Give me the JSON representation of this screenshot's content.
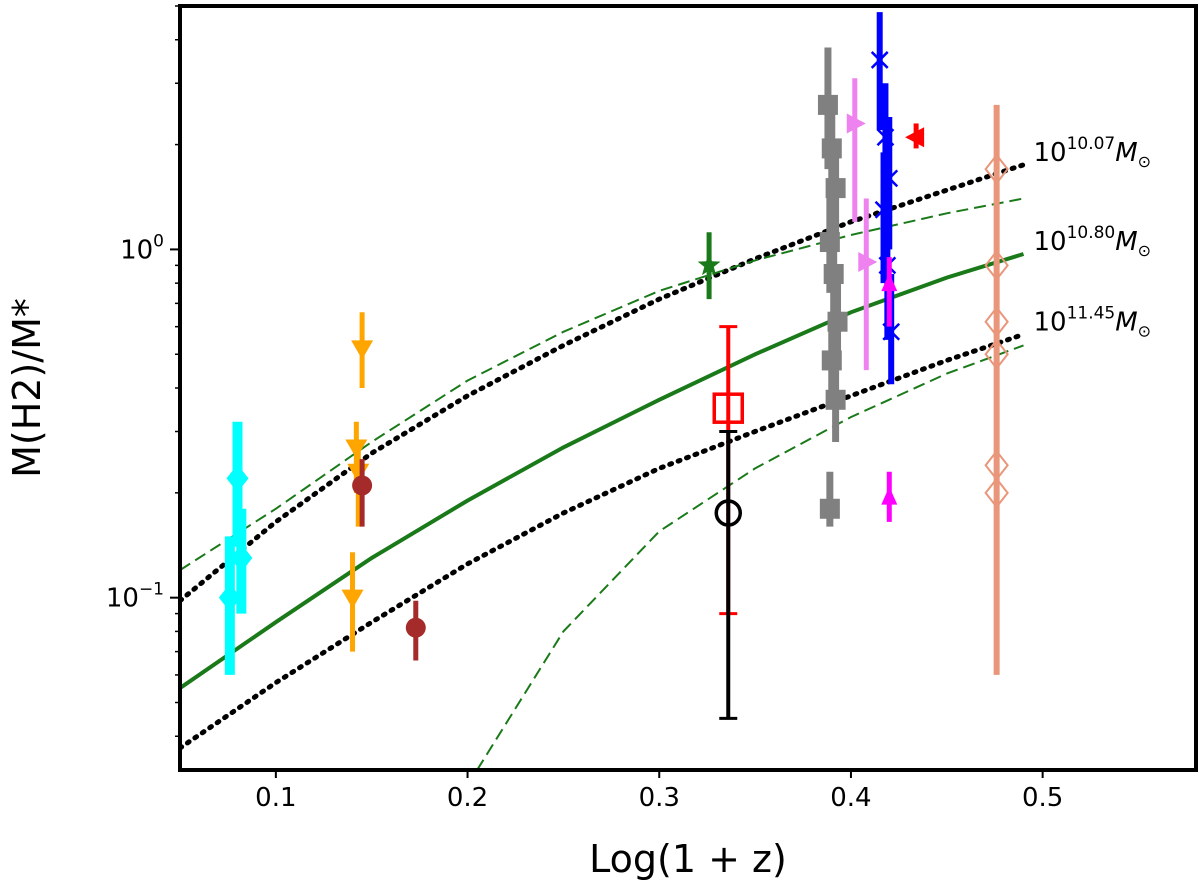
{
  "chart_data": {
    "type": "scatter",
    "title": "",
    "xlabel": "Log(1 + z)",
    "ylabel": "M(H2)/M*",
    "xlim": [
      0.05,
      0.58
    ],
    "ylim": [
      0.032,
      5.0
    ],
    "yscale": "log",
    "x_ticks": [
      0.1,
      0.2,
      0.3,
      0.4,
      0.5
    ],
    "x_tick_labels": [
      "0.1",
      "0.2",
      "0.3",
      "0.4",
      "0.5"
    ],
    "y_ticks": [
      {
        "value": 0.1,
        "base": "10",
        "exp": "−1"
      },
      {
        "value": 1.0,
        "base": "10",
        "exp": "0"
      }
    ],
    "curves": [
      {
        "name": "10.07",
        "style": "dotted",
        "color": "#000000",
        "label_base": "10",
        "label_exp": "10.07",
        "label_unit": "M",
        "x": [
          0.05,
          0.1,
          0.15,
          0.2,
          0.25,
          0.3,
          0.35,
          0.4,
          0.45,
          0.49
        ],
        "y": [
          0.098,
          0.165,
          0.26,
          0.38,
          0.53,
          0.72,
          0.94,
          1.2,
          1.48,
          1.75
        ]
      },
      {
        "name": "10.80",
        "style": "solid",
        "color": "#1a7a1a",
        "label_base": "10",
        "label_exp": "10.80",
        "label_unit": "M",
        "x": [
          0.05,
          0.1,
          0.15,
          0.2,
          0.25,
          0.3,
          0.35,
          0.4,
          0.45,
          0.49
        ],
        "y": [
          0.055,
          0.085,
          0.13,
          0.19,
          0.27,
          0.37,
          0.5,
          0.66,
          0.83,
          0.97
        ]
      },
      {
        "name": "10.80 upper",
        "style": "dashed",
        "color": "#1a7a1a",
        "x": [
          0.05,
          0.1,
          0.15,
          0.2,
          0.25,
          0.3,
          0.35,
          0.4,
          0.45,
          0.49
        ],
        "y": [
          0.12,
          0.18,
          0.28,
          0.42,
          0.58,
          0.76,
          0.93,
          1.1,
          1.27,
          1.4
        ]
      },
      {
        "name": "10.80 lower",
        "style": "dashed",
        "color": "#1a7a1a",
        "x": [
          0.205,
          0.25,
          0.3,
          0.35,
          0.4,
          0.45,
          0.49
        ],
        "y": [
          0.032,
          0.08,
          0.155,
          0.235,
          0.33,
          0.44,
          0.53
        ]
      },
      {
        "name": "11.45",
        "style": "dotted",
        "color": "#000000",
        "label_base": "10",
        "label_exp": "11.45",
        "label_unit": "M",
        "x": [
          0.05,
          0.1,
          0.15,
          0.2,
          0.25,
          0.3,
          0.35,
          0.4,
          0.45,
          0.49
        ],
        "y": [
          0.037,
          0.057,
          0.085,
          0.125,
          0.175,
          0.235,
          0.3,
          0.38,
          0.48,
          0.57
        ]
      }
    ],
    "series": [
      {
        "name": "cyan",
        "color": "#00ffff",
        "marker": "diamond",
        "lw": 10,
        "points": [
          {
            "x": 0.08,
            "y": 0.22,
            "lo": 0.14,
            "hi": 0.32
          },
          {
            "x": 0.082,
            "y": 0.13,
            "lo": 0.09,
            "hi": 0.18
          },
          {
            "x": 0.076,
            "y": 0.1,
            "lo": 0.06,
            "hi": 0.15
          }
        ]
      },
      {
        "name": "orange",
        "color": "#ffa500",
        "marker": "triangle-down",
        "lw": 5,
        "points": [
          {
            "x": 0.145,
            "y": 0.52,
            "lo": 0.4,
            "hi": 0.66
          },
          {
            "x": 0.142,
            "y": 0.27,
            "lo": 0.2,
            "hi": 0.32
          },
          {
            "x": 0.143,
            "y": 0.23,
            "lo": 0.16,
            "hi": 0.27
          },
          {
            "x": 0.14,
            "y": 0.1,
            "lo": 0.07,
            "hi": 0.135
          }
        ]
      },
      {
        "name": "brown",
        "color": "#a52a2a",
        "marker": "circle",
        "lw": 5,
        "points": [
          {
            "x": 0.145,
            "y": 0.21,
            "lo": 0.16,
            "hi": 0.25
          },
          {
            "x": 0.173,
            "y": 0.082,
            "lo": 0.066,
            "hi": 0.098
          }
        ]
      },
      {
        "name": "green",
        "color": "#1a7a1a",
        "marker": "star",
        "lw": 5,
        "points": [
          {
            "x": 0.326,
            "y": 0.9,
            "lo": 0.72,
            "hi": 1.12
          }
        ]
      },
      {
        "name": "red open square",
        "color": "#ff0000",
        "marker": "square-open",
        "lw": 4,
        "points": [
          {
            "x": 0.336,
            "y": 0.35,
            "lo": 0.09,
            "hi": 0.6
          }
        ]
      },
      {
        "name": "black open circle",
        "color": "#000000",
        "marker": "circle-open",
        "lw": 4,
        "points": [
          {
            "x": 0.336,
            "y": 0.175,
            "lo": 0.045,
            "hi": 0.3
          }
        ]
      },
      {
        "name": "gray",
        "color": "#808080",
        "marker": "square",
        "lw": 7,
        "points": [
          {
            "x": 0.388,
            "y": 2.6,
            "lo": 1.7,
            "hi": 3.8
          },
          {
            "x": 0.39,
            "y": 1.95,
            "lo": 1.4,
            "hi": 2.6
          },
          {
            "x": 0.392,
            "y": 1.5,
            "lo": 1.05,
            "hi": 2.0
          },
          {
            "x": 0.389,
            "y": 1.05,
            "lo": 0.75,
            "hi": 1.45
          },
          {
            "x": 0.391,
            "y": 0.85,
            "lo": 0.6,
            "hi": 1.15
          },
          {
            "x": 0.393,
            "y": 0.62,
            "lo": 0.45,
            "hi": 0.85
          },
          {
            "x": 0.39,
            "y": 0.48,
            "lo": 0.35,
            "hi": 0.62
          },
          {
            "x": 0.392,
            "y": 0.37,
            "lo": 0.28,
            "hi": 0.45
          },
          {
            "x": 0.389,
            "y": 0.18,
            "lo": 0.16,
            "hi": 0.23
          }
        ]
      },
      {
        "name": "violet",
        "color": "#ee82ee",
        "marker": "triangle-right",
        "lw": 5,
        "points": [
          {
            "x": 0.402,
            "y": 2.3,
            "lo": 1.2,
            "hi": 3.1
          },
          {
            "x": 0.408,
            "y": 0.92,
            "lo": 0.45,
            "hi": 1.4
          }
        ]
      },
      {
        "name": "blue",
        "color": "#0000ff",
        "marker": "x",
        "lw": 6,
        "points": [
          {
            "x": 0.415,
            "y": 3.5,
            "lo": 2.2,
            "hi": 4.8
          },
          {
            "x": 0.418,
            "y": 2.1,
            "lo": 1.3,
            "hi": 3.0
          },
          {
            "x": 0.42,
            "y": 1.6,
            "lo": 1.0,
            "hi": 2.4
          },
          {
            "x": 0.417,
            "y": 1.3,
            "lo": 0.8,
            "hi": 1.9
          },
          {
            "x": 0.419,
            "y": 0.9,
            "lo": 0.55,
            "hi": 1.3
          },
          {
            "x": 0.421,
            "y": 0.58,
            "lo": 0.41,
            "hi": 0.85
          }
        ]
      },
      {
        "name": "magenta",
        "color": "#ff00ff",
        "marker": "triangle-up",
        "lw": 5,
        "points": [
          {
            "x": 0.42,
            "y": 0.8,
            "lo": 0.6,
            "hi": 0.95
          },
          {
            "x": 0.42,
            "y": 0.195,
            "lo": 0.165,
            "hi": 0.23
          }
        ]
      },
      {
        "name": "red triangle",
        "color": "#ff0000",
        "marker": "triangle-left",
        "lw": 5,
        "points": [
          {
            "x": 0.434,
            "y": 2.1,
            "lo": 1.95,
            "hi": 2.3
          }
        ]
      },
      {
        "name": "salmon",
        "color": "#e9967a",
        "marker": "diamond-open",
        "lw": 6,
        "points": [
          {
            "x": 0.476,
            "y": 1.7,
            "lo": 0.06,
            "hi": 2.6
          },
          {
            "x": 0.476,
            "y": 0.9
          },
          {
            "x": 0.476,
            "y": 0.62
          },
          {
            "x": 0.476,
            "y": 0.5
          },
          {
            "x": 0.476,
            "y": 0.24
          },
          {
            "x": 0.476,
            "y": 0.2
          }
        ]
      }
    ]
  }
}
